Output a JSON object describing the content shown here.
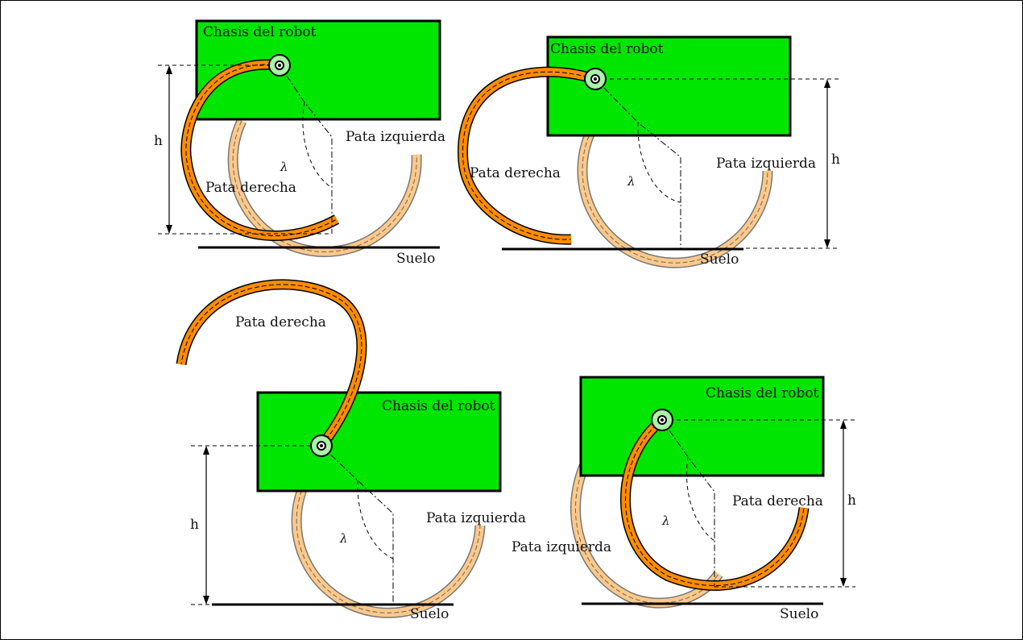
{
  "panels": [
    {
      "chassis_label": "Chasis del robot",
      "left_leg_label": "Pata izquierda",
      "right_leg_label": "Pata derecha",
      "ground_label": "Suelo",
      "height_label": "h",
      "angle_label": "λ"
    },
    {
      "chassis_label": "Chasis del robot",
      "left_leg_label": "Pata izquierda",
      "right_leg_label": "Pata derecha",
      "ground_label": "Suelo",
      "height_label": "h",
      "angle_label": "λ"
    },
    {
      "chassis_label": "Chasis del robot",
      "left_leg_label": "Pata izquierda",
      "right_leg_label": "Pata derecha",
      "ground_label": "Suelo",
      "height_label": "h",
      "angle_label": "λ"
    },
    {
      "chassis_label": "Chasis del robot",
      "left_leg_label": "Pata izquierda",
      "right_leg_label": "Pata derecha",
      "ground_label": "Suelo",
      "height_label": "h",
      "angle_label": "λ"
    }
  ],
  "colors": {
    "chassis": "#00e600",
    "front_leg": "#ff8c00",
    "back_leg": "#ffc98a",
    "hub": "#a9f2a9"
  }
}
